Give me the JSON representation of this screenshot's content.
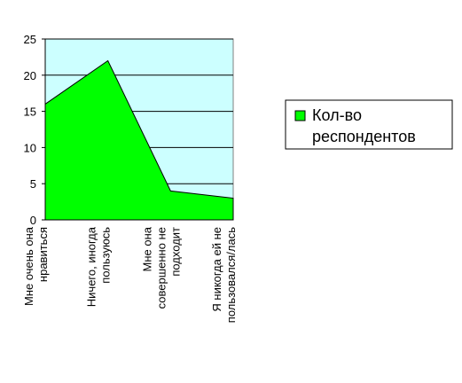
{
  "chart_data": {
    "type": "area",
    "categories": [
      "Мне очень она нравиться",
      "Ничего, иногда пользуюсь",
      "Мне она совершенно не подходит",
      "Я никогда ей не пользовался/лась"
    ],
    "series": [
      {
        "name": "Кол-во респондентов",
        "color": "#00ff00",
        "values": [
          16,
          22,
          4,
          3
        ]
      }
    ],
    "ylim": [
      0,
      25
    ],
    "yticks": [
      0,
      5,
      10,
      15,
      20,
      25
    ],
    "grid": true,
    "plot_background": "#ccffff",
    "legend": "right"
  }
}
